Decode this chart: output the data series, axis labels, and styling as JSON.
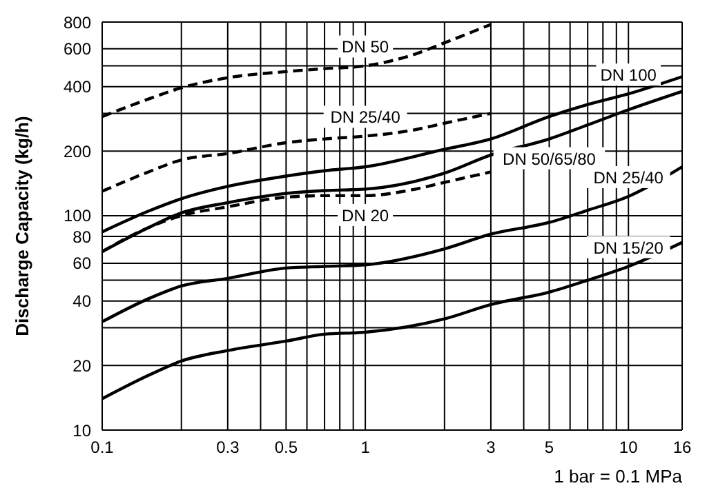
{
  "chart_data": {
    "type": "line",
    "ylabel": "Discharge Capacity (kg/h)",
    "xlabel": "1 bar = 0.1 MPa",
    "log": "xy",
    "grid": true,
    "xlim": [
      0.1,
      16
    ],
    "ylim": [
      10,
      800
    ],
    "xticks": [
      0.1,
      {
        "value": 0.2,
        "label": null
      },
      0.3,
      {
        "value": 0.4,
        "label": null
      },
      0.5,
      {
        "value": 0.6,
        "label": null
      },
      {
        "value": 0.7,
        "label": null
      },
      {
        "value": 0.8,
        "label": null
      },
      {
        "value": 0.9,
        "label": null
      },
      1,
      {
        "value": 2,
        "label": null
      },
      3,
      {
        "value": 4,
        "label": null
      },
      5,
      {
        "value": 6,
        "label": null
      },
      {
        "value": 7,
        "label": null
      },
      {
        "value": 8,
        "label": null
      },
      {
        "value": 9,
        "label": null
      },
      10,
      16
    ],
    "yticks": [
      10,
      20,
      {
        "value": 30,
        "label": null
      },
      40,
      {
        "value": 50,
        "label": null
      },
      60,
      80,
      100,
      200,
      {
        "value": 300,
        "label": null
      },
      400,
      {
        "value": 500,
        "label": null
      },
      600,
      800
    ],
    "series": [
      {
        "name": "DN 50",
        "color": "#000000",
        "line_style": "dashed",
        "x": [
          0.1,
          0.15,
          0.2,
          0.3,
          0.5,
          0.7,
          1,
          1.5,
          2,
          3
        ],
        "values": [
          290,
          350,
          395,
          440,
          470,
          485,
          500,
          560,
          640,
          780
        ]
      },
      {
        "name": "DN 25/40",
        "color": "#000000",
        "line_style": "dashed",
        "x": [
          0.1,
          0.15,
          0.2,
          0.3,
          0.5,
          0.7,
          1,
          1.5,
          2,
          3
        ],
        "values": [
          130,
          160,
          182,
          195,
          219,
          228,
          235,
          250,
          270,
          300
        ]
      },
      {
        "name": "DN 20",
        "color": "#000000",
        "line_style": "dashed",
        "x": [
          0.1,
          0.15,
          0.2,
          0.3,
          0.5,
          0.7,
          1,
          1.5,
          2,
          3
        ],
        "values": [
          68,
          88,
          100,
          110,
          122,
          124,
          124,
          132,
          143,
          160
        ]
      },
      {
        "name": "DN 100",
        "color": "#000000",
        "line_style": "solid",
        "x": [
          0.1,
          0.15,
          0.2,
          0.3,
          0.5,
          0.7,
          1,
          2,
          3,
          5,
          7,
          10,
          16
        ],
        "values": [
          84,
          105,
          120,
          137,
          153,
          162,
          169,
          204,
          228,
          290,
          330,
          370,
          445
        ]
      },
      {
        "name": "DN 50/65/80",
        "color": "#000000",
        "line_style": "solid",
        "x": [
          0.1,
          0.15,
          0.2,
          0.3,
          0.5,
          0.7,
          1,
          2,
          3,
          5,
          7,
          10,
          16
        ],
        "values": [
          68,
          88,
          103,
          115,
          127,
          131,
          133,
          158,
          192,
          228,
          265,
          312,
          380
        ]
      },
      {
        "name": "DN 25/40",
        "color": "#000000",
        "line_style": "solid",
        "x": [
          0.1,
          0.15,
          0.2,
          0.3,
          0.5,
          0.7,
          1,
          2,
          3,
          5,
          7,
          10,
          16
        ],
        "values": [
          32,
          41,
          47,
          51,
          57,
          58,
          59,
          70,
          82,
          93,
          106,
          123,
          169
        ]
      },
      {
        "name": "DN 15/20",
        "color": "#000000",
        "line_style": "solid",
        "x": [
          0.1,
          0.15,
          0.2,
          0.3,
          0.5,
          0.7,
          1,
          2,
          3,
          5,
          7,
          10,
          16
        ],
        "values": [
          14,
          18,
          21,
          23.5,
          26,
          28,
          28.6,
          33,
          38.5,
          44,
          50,
          58,
          75
        ]
      }
    ]
  }
}
